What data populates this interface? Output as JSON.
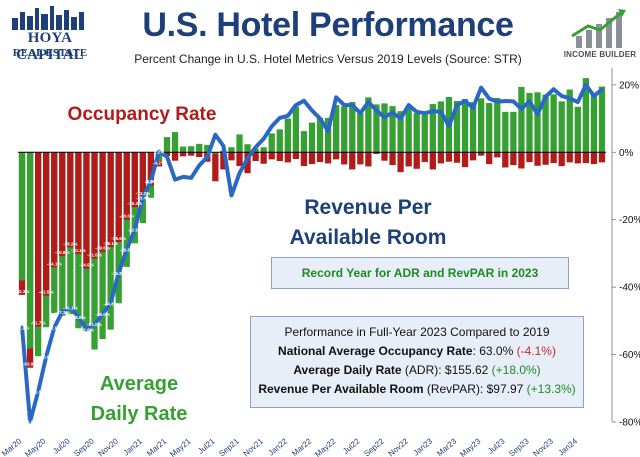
{
  "header": {
    "logo_line1": "HOYA CAPITAL",
    "logo_line2": "REAL ESTATE",
    "title": "U.S. Hotel Performance",
    "subtitle": "Percent Change in U.S. Hotel Metrics Versus 2019 Levels (Source: STR)",
    "brand": "INCOME BUILDER"
  },
  "labels": {
    "occupancy": "Occupancy Rate",
    "revpar_line1": "Revenue Per",
    "revpar_line2": "Available Room",
    "adr_line1": "Average",
    "adr_line2": "Daily Rate"
  },
  "record_box": "Record Year for ADR and RevPAR in 2023",
  "perf_box": {
    "heading": "Performance in Full-Year 2023 Compared to 2019",
    "occ_label": "National Average Occupancy Rate",
    "occ_value": ": 63.0% ",
    "occ_change": "(-4.1%)",
    "adr_label": "Average Daily Rate",
    "adr_value": " (ADR): $155.62 ",
    "adr_change": "(+18.0%)",
    "revpar_label": "Revenue Per Available Room",
    "revpar_value": " (RevPAR): $97.97 ",
    "revpar_change": "(+13.3%)"
  },
  "colors": {
    "title": "#1d3f7a",
    "occupancy": "#b31b1b",
    "adr": "#36a132",
    "revpar": "#2a68c6",
    "green_text": "#1f8a1f"
  },
  "chart_data": {
    "type": "bar",
    "ylim": [
      -80,
      25
    ],
    "y_ticks": [
      "20%",
      "0%",
      "-20%",
      "-40%",
      "-60%",
      "-80%"
    ],
    "y_tick_values": [
      20,
      0,
      -20,
      -40,
      -60,
      -80
    ],
    "x_tick_labels": [
      "Mar20",
      "May20",
      "Jul20",
      "Sep20",
      "Nov20",
      "Jan21",
      "Mar21",
      "May21",
      "Jul21",
      "Sep21",
      "Nov21",
      "Jan22",
      "Mar22",
      "May22",
      "Jul22",
      "Sep22",
      "Nov22",
      "Jan23",
      "Mar23",
      "May23",
      "Jul23",
      "Sep23",
      "Nov23",
      "Jan24"
    ],
    "series": [
      {
        "name": "Occupancy Rate",
        "values": [
          -42.3,
          -63.9,
          -51.7,
          -42.5,
          -34.1,
          -30.8,
          -28.2,
          -30.1,
          -34.5,
          -31.5,
          -29.5,
          -28.1,
          -26.6,
          -20.0,
          -16.3,
          -13.2,
          -9.9,
          -4.2,
          -1.1,
          -2.5,
          -1.2,
          -1.0,
          -1.4,
          -2.8,
          -8.6,
          -5.1,
          -2.4,
          -4.1,
          -6.2,
          -2.6,
          -3.4,
          -2.1,
          -2.6,
          -3.0,
          -2.0,
          -4.1,
          -3.5,
          -2.9,
          -3.3,
          -2.1,
          -3.6,
          -5.1,
          -3.6,
          -4.2,
          -0.5,
          -2.5,
          -3.8,
          -5.9,
          -4.2,
          -4.9,
          -2.9,
          -5.1,
          -3.3,
          -2.8,
          -3.1,
          -4.4,
          -2.4,
          -1.0,
          -3.5,
          -1.5,
          -4.5,
          -3.8,
          -4.8,
          -2.9,
          -4.0,
          -3.7,
          -3.2,
          -4.1,
          -3.0,
          -3.3,
          -3.2,
          -3.5,
          -3.0
        ]
      },
      {
        "name": "Average Daily Rate",
        "values": [
          -38.0,
          -58.2,
          -60.5,
          -51.9,
          -47.7,
          -48.5,
          -48.0,
          -52.2,
          -53.1,
          -58.5,
          -55.4,
          -52.6,
          -44.8,
          -34.0,
          -27.0,
          -21.0,
          -13.5,
          -2.5,
          4.5,
          6.0,
          1.7,
          1.8,
          2.5,
          2.2,
          -0.5,
          0.5,
          1.5,
          5.3,
          2.4,
          1.1,
          1.5,
          5.6,
          6.8,
          10.0,
          13.5,
          6.3,
          8.8,
          10.2,
          10.2,
          14.0,
          13.6,
          14.9,
          11.6,
          16.3,
          14.2,
          14.5,
          13.7,
          12.2,
          13.8,
          11.6,
          11.1,
          14.3,
          15.1,
          16.4,
          15.2,
          15.8,
          14.9,
          16.0,
          14.6,
          16.1,
          12.0,
          12.0,
          19.4,
          17.6,
          17.8,
          17.1,
          17.2,
          15.1,
          18.6,
          13.5,
          22.0,
          17.5,
          19.5
        ]
      },
      {
        "name": "Revenue Per Available Room",
        "values": [
          -51.9,
          -79.9,
          -71.0,
          -60.6,
          -52.0,
          -47.3,
          -46.1,
          -48.8,
          -52.6,
          -51.0,
          -48.0,
          -44.8,
          -35.8,
          -28.8,
          -22.9,
          -13.4,
          -8.5,
          0.2,
          -1.3,
          -8.1,
          -7.3,
          -7.6,
          -3.9,
          -1.4,
          5.2,
          1.9,
          -12.8,
          -6.2,
          -1.8,
          1.5,
          4.0,
          7.7,
          10.2,
          10.8,
          14.0,
          15.3,
          12.4,
          10.0,
          6.3,
          16.3,
          14.0,
          14.0,
          11.6,
          14.9,
          12.4,
          10.4,
          11.8,
          10.0,
          14.0,
          12.0,
          11.6,
          12.2,
          12.0,
          7.8,
          14.0,
          15.2,
          13.2,
          19.2,
          15.9,
          15.0,
          15.2,
          15.1,
          12.9,
          15.1,
          11.3,
          16.5,
          18.7,
          16.7,
          16.0,
          14.9,
          20.0,
          16.7,
          18.6
        ]
      }
    ]
  }
}
